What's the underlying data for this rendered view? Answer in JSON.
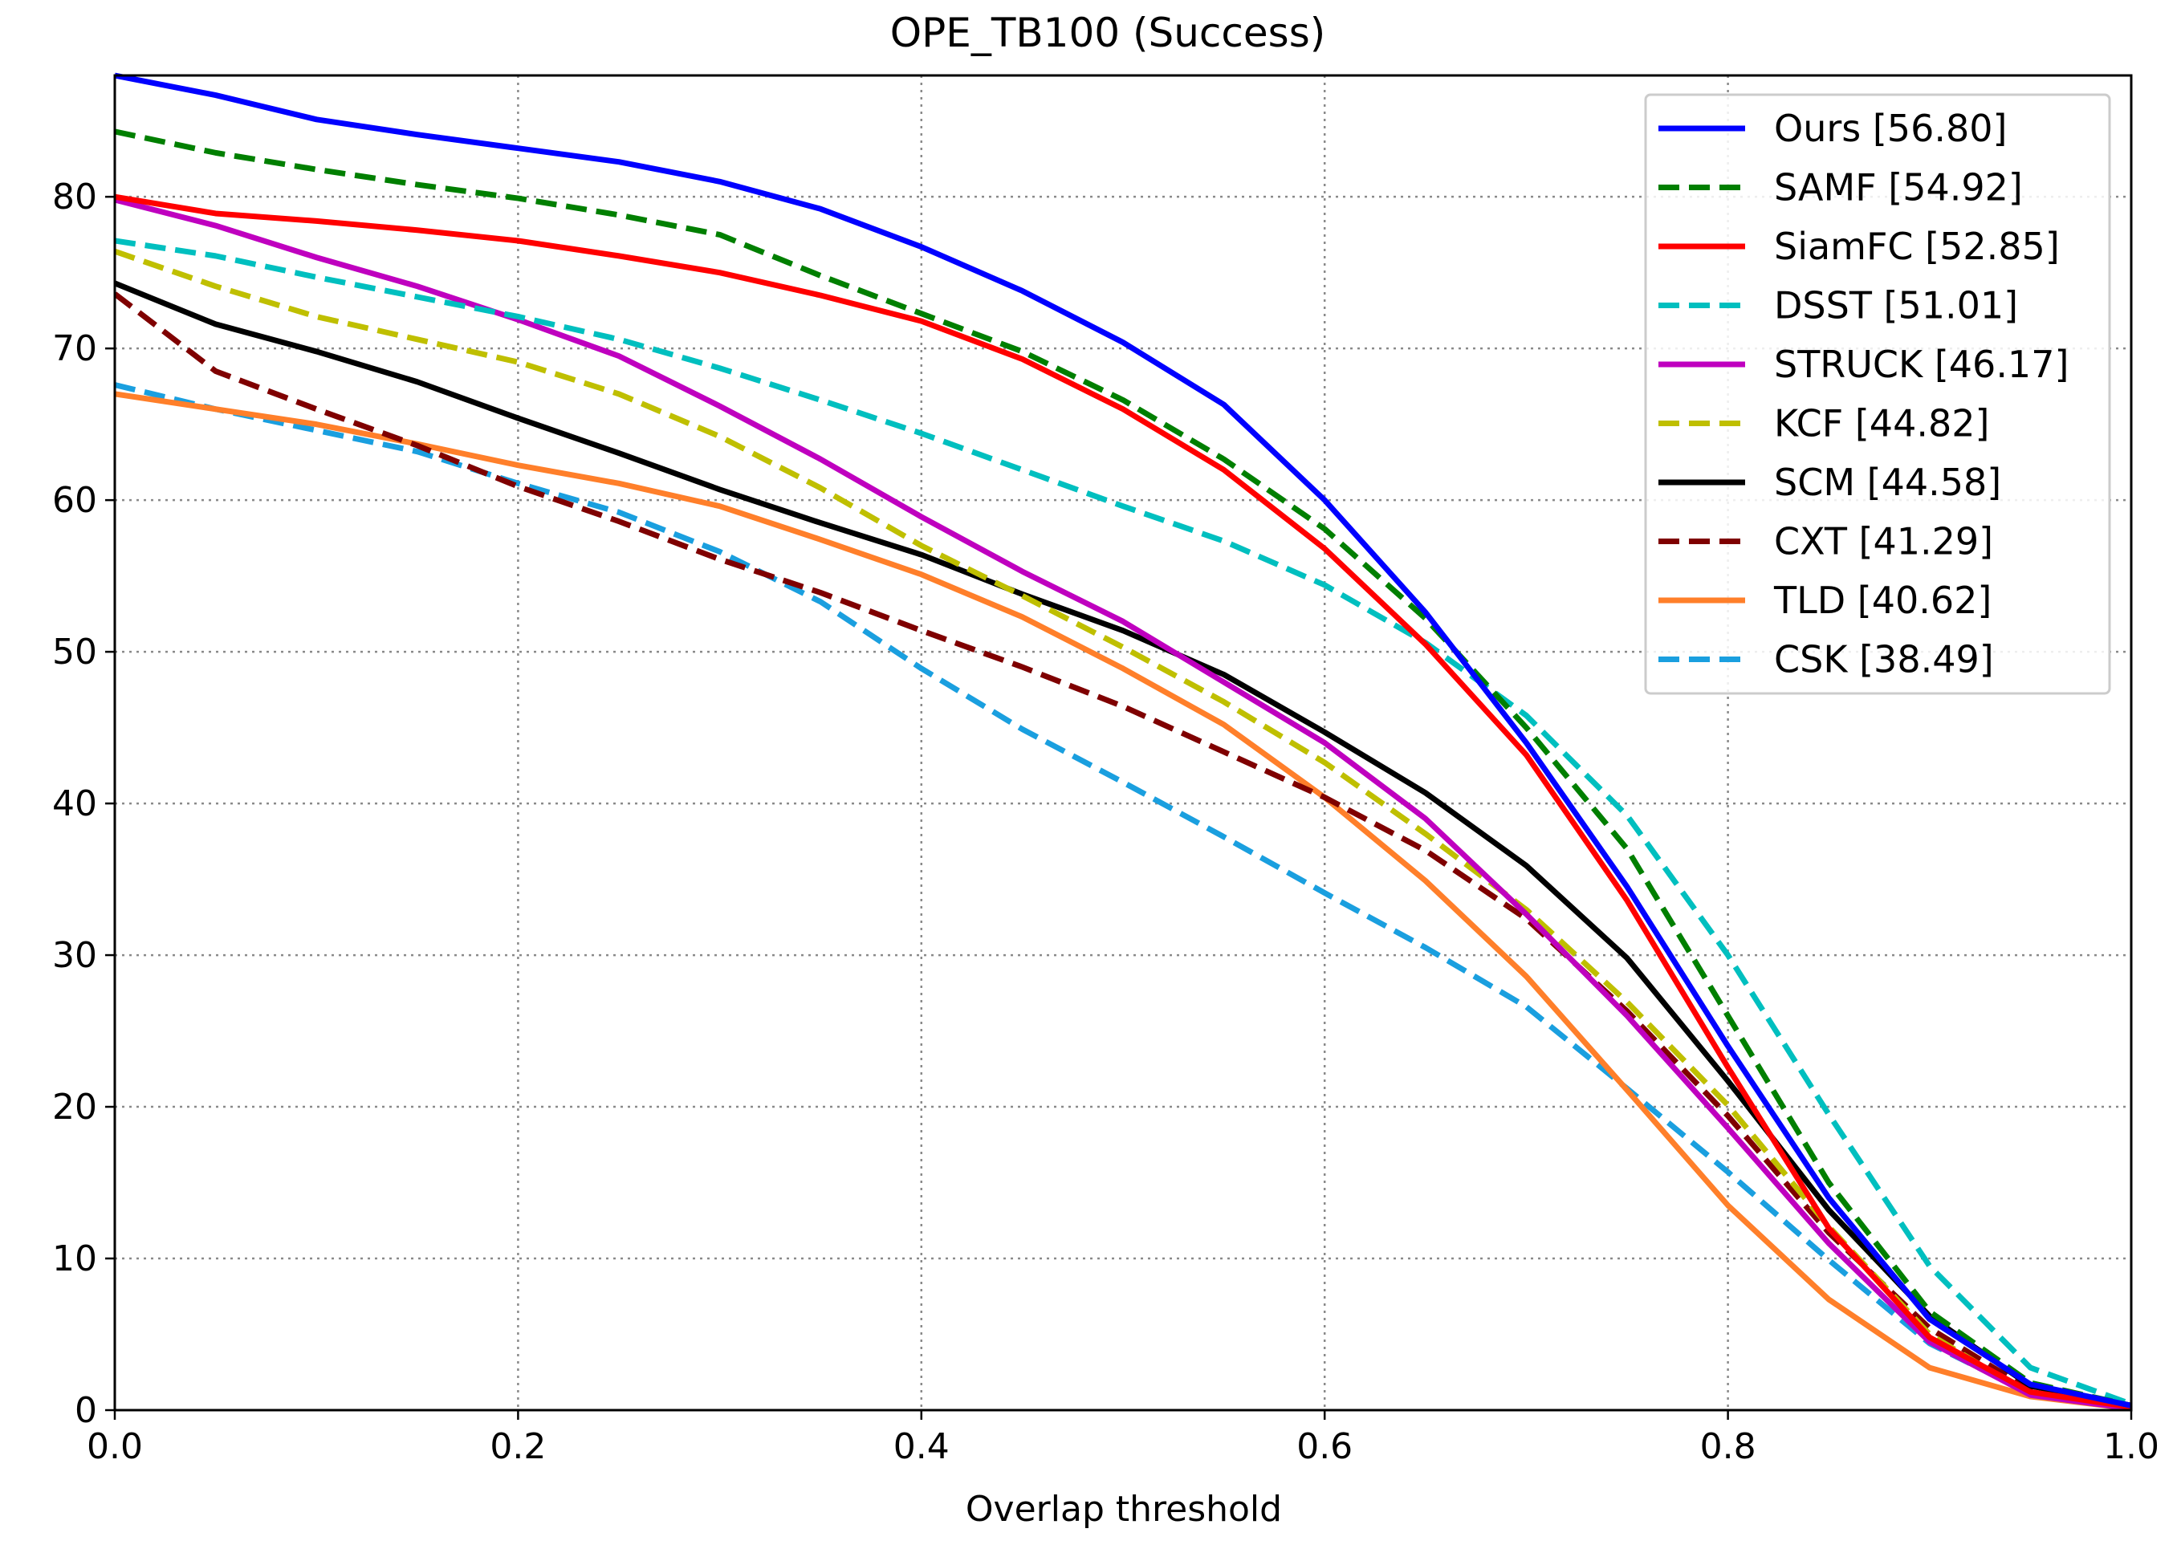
{
  "chart_data": {
    "type": "line",
    "title": "OPE_TB100 (Success)",
    "xlabel": "Overlap threshold",
    "ylabel": "",
    "xlim": [
      0,
      1
    ],
    "ylim": [
      0,
      88
    ],
    "xticks": [
      "0.0",
      "0.2",
      "0.4",
      "0.6",
      "0.8",
      "1.0"
    ],
    "yticks": [
      "0",
      "10",
      "20",
      "30",
      "40",
      "50",
      "60",
      "70",
      "80"
    ],
    "grid": true,
    "legend_position": "top-right",
    "x": [
      0,
      0.05,
      0.1,
      0.15,
      0.2,
      0.25,
      0.3,
      0.35,
      0.4,
      0.45,
      0.5,
      0.55,
      0.6,
      0.65,
      0.7,
      0.75,
      0.8,
      0.85,
      0.9,
      0.95,
      1.0
    ],
    "series": [
      {
        "name": "Ours [56.80]",
        "color": "#0000ff",
        "dash": "solid",
        "values": [
          88.0,
          86.7,
          85.1,
          84.1,
          83.2,
          82.3,
          81.0,
          79.2,
          76.7,
          73.8,
          70.4,
          66.3,
          60.0,
          52.6,
          44.0,
          34.5,
          24.0,
          14.0,
          6.0,
          1.7,
          0.3
        ]
      },
      {
        "name": "SAMF [54.92]",
        "color": "#007f00",
        "dash": "dashed",
        "values": [
          84.3,
          82.9,
          81.8,
          80.8,
          79.9,
          78.8,
          77.5,
          74.8,
          72.3,
          69.8,
          66.6,
          62.7,
          58.1,
          52.2,
          45.0,
          37.0,
          26.0,
          15.0,
          6.5,
          1.8,
          0.3
        ]
      },
      {
        "name": "SiamFC [52.85]",
        "color": "#ff0000",
        "dash": "solid",
        "values": [
          80.0,
          78.9,
          78.4,
          77.8,
          77.1,
          76.1,
          75.0,
          73.5,
          71.8,
          69.3,
          66.0,
          62.0,
          56.8,
          50.5,
          43.2,
          33.6,
          22.6,
          12.0,
          4.8,
          1.2,
          0.2
        ]
      },
      {
        "name": "DSST [51.01]",
        "color": "#00bfbf",
        "dash": "dashed",
        "values": [
          77.1,
          76.1,
          74.7,
          73.4,
          72.1,
          70.6,
          68.7,
          66.6,
          64.4,
          62.0,
          59.6,
          57.3,
          54.4,
          50.6,
          45.8,
          39.2,
          30.0,
          19.5,
          9.5,
          2.8,
          0.4
        ]
      },
      {
        "name": "STRUCK [46.17]",
        "color": "#bf00bf",
        "dash": "solid",
        "values": [
          79.8,
          78.1,
          76.0,
          74.1,
          71.9,
          69.5,
          66.2,
          62.7,
          58.9,
          55.3,
          52.0,
          48.0,
          44.0,
          39.0,
          32.7,
          26.0,
          18.6,
          11.0,
          4.5,
          1.0,
          0.1
        ]
      },
      {
        "name": "KCF [44.82]",
        "color": "#bfbf00",
        "dash": "dashed",
        "values": [
          76.4,
          74.1,
          72.1,
          70.6,
          69.1,
          67.0,
          64.2,
          60.8,
          57.0,
          53.7,
          50.3,
          46.7,
          42.7,
          38.0,
          33.0,
          26.9,
          20.1,
          12.1,
          5.0,
          1.0,
          0.1
        ]
      },
      {
        "name": "SCM [44.58]",
        "color": "#000000",
        "dash": "solid",
        "values": [
          74.3,
          71.6,
          69.8,
          67.8,
          65.4,
          63.1,
          60.7,
          58.5,
          56.4,
          53.8,
          51.4,
          48.5,
          44.7,
          40.7,
          35.9,
          29.8,
          21.7,
          13.2,
          6.2,
          1.6,
          0.3
        ]
      },
      {
        "name": "CXT [41.29]",
        "color": "#7f0000",
        "dash": "dashed",
        "values": [
          73.6,
          68.5,
          66.0,
          63.6,
          60.9,
          58.6,
          56.1,
          53.9,
          51.4,
          49.0,
          46.4,
          43.4,
          40.4,
          36.9,
          32.4,
          26.3,
          19.4,
          11.7,
          5.4,
          1.3,
          0.2
        ]
      },
      {
        "name": "TLD [40.62]",
        "color": "#ff7f2a",
        "dash": "solid",
        "values": [
          67.0,
          66.0,
          65.0,
          63.7,
          62.3,
          61.1,
          59.6,
          57.4,
          55.1,
          52.3,
          48.9,
          45.2,
          40.4,
          34.9,
          28.6,
          21.1,
          13.5,
          7.3,
          2.8,
          0.9,
          0.1
        ]
      },
      {
        "name": "CSK [38.49]",
        "color": "#1a9fdf",
        "dash": "dashed",
        "values": [
          67.6,
          66.0,
          64.6,
          63.2,
          61.1,
          59.2,
          56.6,
          53.3,
          48.9,
          44.9,
          41.4,
          37.8,
          34.1,
          30.5,
          26.6,
          21.2,
          15.7,
          9.9,
          4.4,
          1.1,
          0.1
        ]
      }
    ]
  }
}
